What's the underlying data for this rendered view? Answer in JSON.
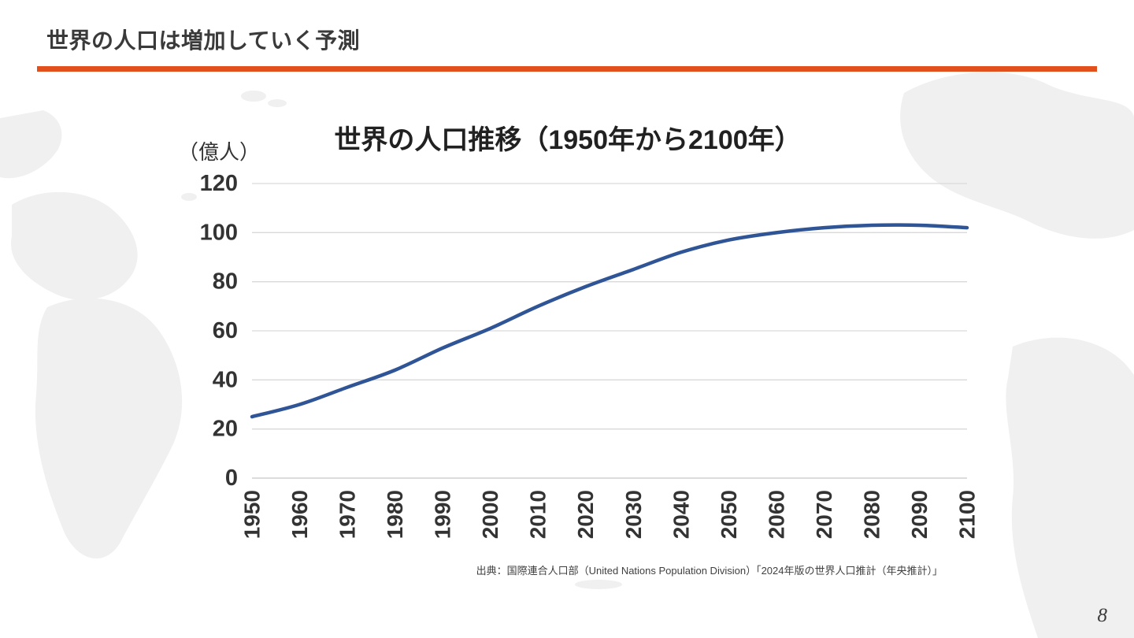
{
  "slide": {
    "title": "世界の人口は増加していく予測",
    "page_number": "8",
    "accent_color": "#e2501d"
  },
  "chart_data": {
    "type": "line",
    "title": "世界の人口推移（1950年から2100年）",
    "unit_label": "（億人）",
    "xlabel": "",
    "ylabel": "億人",
    "categories": [
      "1950",
      "1960",
      "1970",
      "1980",
      "1990",
      "2000",
      "2010",
      "2020",
      "2030",
      "2040",
      "2050",
      "2060",
      "2070",
      "2080",
      "2090",
      "2100"
    ],
    "series": [
      {
        "name": "世界の人口",
        "values": [
          25,
          30,
          37,
          44,
          53,
          61,
          70,
          78,
          85,
          92,
          97,
          100,
          102,
          103,
          103,
          102
        ]
      }
    ],
    "ylim": [
      0,
      120
    ],
    "ytick_step": 20,
    "grid": true,
    "legend": "none",
    "line_color": "#2f5597",
    "grid_color": "#d9d9d9",
    "axis_color": "#c6c6c6",
    "tick_color": "#333333",
    "source": "出典：国際連合人口部（United Nations Population Division）「2024年版の世界人口推計（年央推計）」"
  }
}
